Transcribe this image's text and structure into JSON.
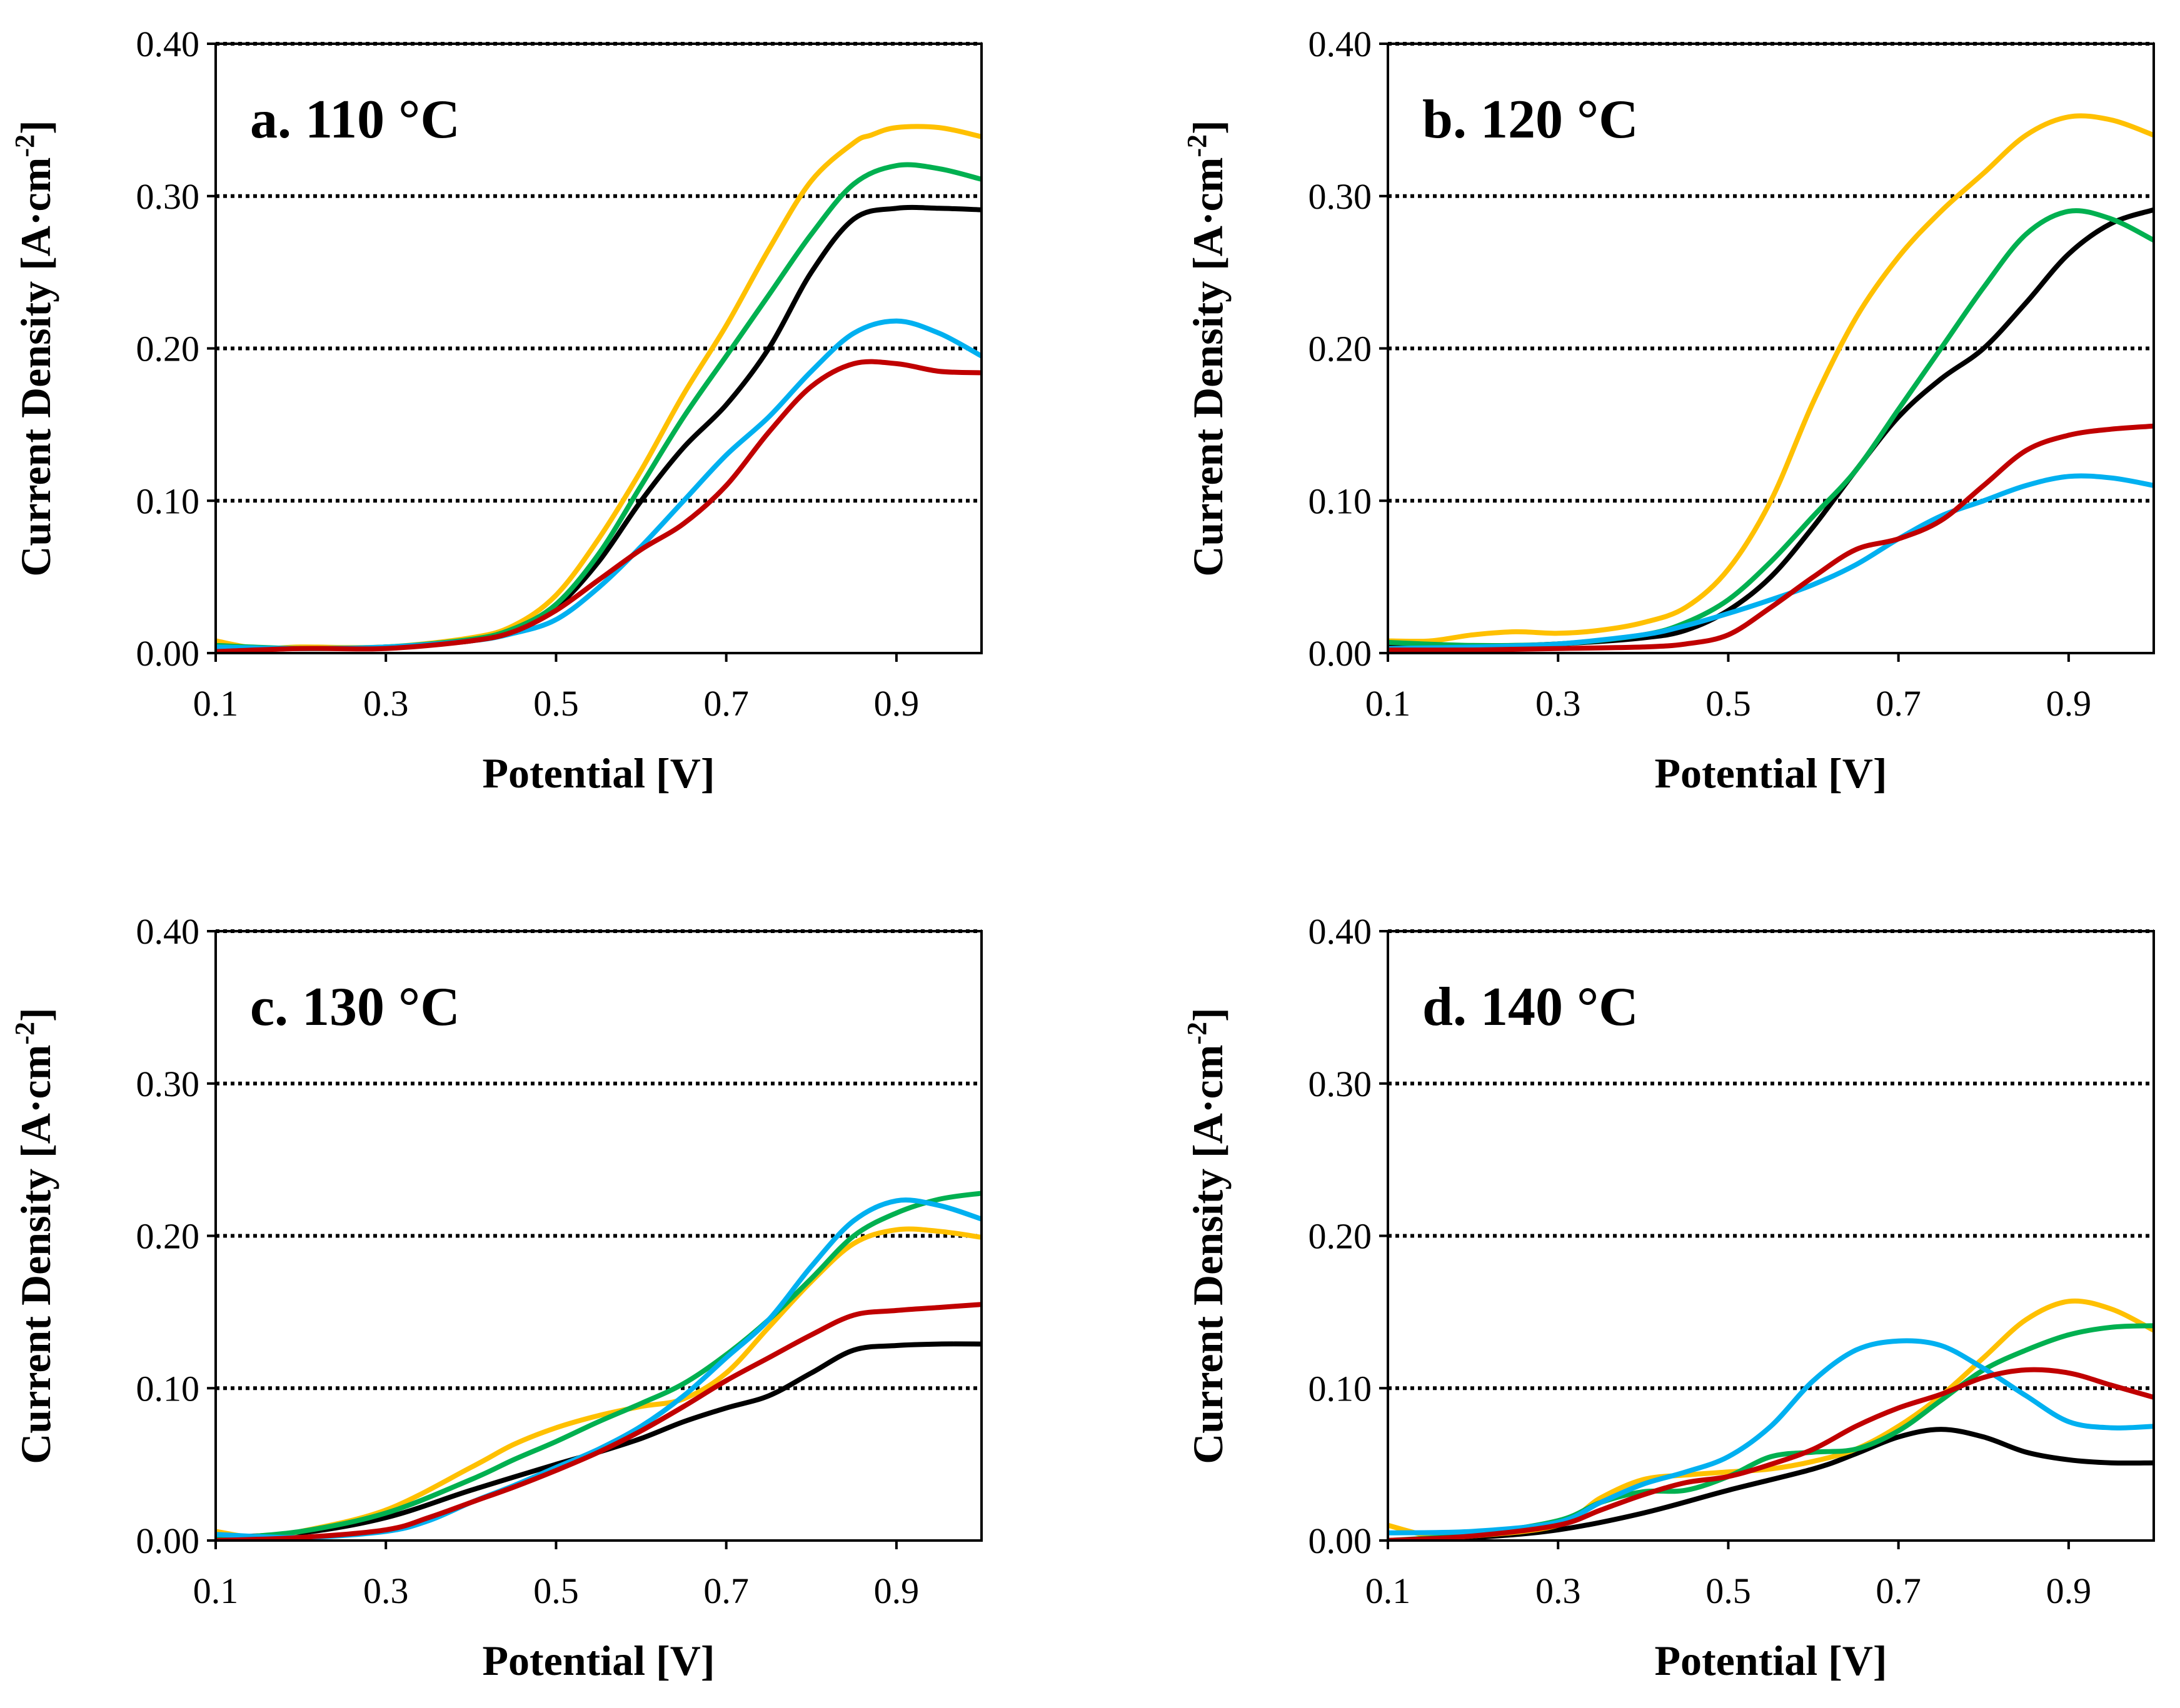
{
  "chart_data": [
    {
      "type": "line",
      "title": "a. 110 °C",
      "xlabel": "Potential [V]",
      "ylabel": "Current Density [A·cm",
      "ylabel_sup": "-2",
      "ylabel_end": "]",
      "xlim": [
        0.1,
        1.0
      ],
      "ylim": [
        0.0,
        0.4
      ],
      "xticks": [
        0.1,
        0.3,
        0.5,
        0.7,
        0.9
      ],
      "xtick_labels": [
        "0.1",
        "0.3",
        "0.5",
        "0.7",
        "0.9"
      ],
      "yticks": [
        0.0,
        0.1,
        0.2,
        0.3,
        0.4
      ],
      "ytick_labels": [
        "0.00",
        "0.10",
        "0.20",
        "0.30",
        "0.40"
      ],
      "gridlines": "horizontal dotted",
      "series": [
        {
          "name": "black",
          "color": "#000000",
          "x": [
            0.1,
            0.2,
            0.3,
            0.4,
            0.45,
            0.5,
            0.55,
            0.6,
            0.65,
            0.7,
            0.75,
            0.8,
            0.85,
            0.9,
            0.95,
            1.0
          ],
          "y": [
            0.003,
            0.003,
            0.004,
            0.008,
            0.015,
            0.03,
            0.06,
            0.1,
            0.135,
            0.163,
            0.2,
            0.25,
            0.285,
            0.292,
            0.292,
            0.291
          ]
        },
        {
          "name": "yellow",
          "color": "#FFC000",
          "x": [
            0.1,
            0.15,
            0.2,
            0.3,
            0.4,
            0.45,
            0.5,
            0.55,
            0.6,
            0.65,
            0.7,
            0.75,
            0.8,
            0.85,
            0.87,
            0.9,
            0.95,
            1.0
          ],
          "y": [
            0.008,
            0.003,
            0.004,
            0.004,
            0.01,
            0.018,
            0.038,
            0.075,
            0.12,
            0.17,
            0.215,
            0.265,
            0.31,
            0.335,
            0.34,
            0.345,
            0.345,
            0.339
          ]
        },
        {
          "name": "green",
          "color": "#00B050",
          "x": [
            0.1,
            0.2,
            0.3,
            0.4,
            0.45,
            0.5,
            0.55,
            0.6,
            0.65,
            0.7,
            0.75,
            0.8,
            0.85,
            0.9,
            0.95,
            1.0
          ],
          "y": [
            0.005,
            0.003,
            0.004,
            0.009,
            0.016,
            0.032,
            0.065,
            0.11,
            0.155,
            0.195,
            0.235,
            0.275,
            0.308,
            0.32,
            0.318,
            0.311
          ]
        },
        {
          "name": "blue",
          "color": "#00B0F0",
          "x": [
            0.1,
            0.2,
            0.3,
            0.4,
            0.45,
            0.5,
            0.55,
            0.6,
            0.65,
            0.7,
            0.75,
            0.8,
            0.85,
            0.9,
            0.95,
            1.0
          ],
          "y": [
            0.004,
            0.003,
            0.004,
            0.008,
            0.013,
            0.022,
            0.043,
            0.07,
            0.1,
            0.13,
            0.155,
            0.185,
            0.21,
            0.218,
            0.21,
            0.195
          ]
        },
        {
          "name": "red",
          "color": "#C00000",
          "x": [
            0.1,
            0.2,
            0.3,
            0.4,
            0.45,
            0.5,
            0.55,
            0.6,
            0.65,
            0.7,
            0.75,
            0.8,
            0.85,
            0.9,
            0.95,
            1.0
          ],
          "y": [
            0.001,
            0.003,
            0.003,
            0.008,
            0.014,
            0.028,
            0.048,
            0.068,
            0.085,
            0.11,
            0.145,
            0.175,
            0.19,
            0.19,
            0.185,
            0.184
          ]
        }
      ]
    },
    {
      "type": "line",
      "title": "b. 120 °C",
      "xlabel": "Potential [V]",
      "ylabel": "Current Density [A·cm",
      "ylabel_sup": "-2",
      "ylabel_end": "]",
      "xlim": [
        0.1,
        1.0
      ],
      "ylim": [
        0.0,
        0.4
      ],
      "xticks": [
        0.1,
        0.3,
        0.5,
        0.7,
        0.9
      ],
      "xtick_labels": [
        "0.1",
        "0.3",
        "0.5",
        "0.7",
        "0.9"
      ],
      "yticks": [
        0.0,
        0.1,
        0.2,
        0.3,
        0.4
      ],
      "ytick_labels": [
        "0.00",
        "0.10",
        "0.20",
        "0.30",
        "0.40"
      ],
      "gridlines": "horizontal dotted",
      "series": [
        {
          "name": "black",
          "color": "#000000",
          "x": [
            0.1,
            0.2,
            0.3,
            0.4,
            0.45,
            0.5,
            0.55,
            0.6,
            0.65,
            0.7,
            0.75,
            0.8,
            0.85,
            0.9,
            0.95,
            1.0
          ],
          "y": [
            0.004,
            0.004,
            0.006,
            0.01,
            0.015,
            0.028,
            0.05,
            0.083,
            0.12,
            0.155,
            0.18,
            0.2,
            0.23,
            0.262,
            0.282,
            0.291
          ]
        },
        {
          "name": "yellow",
          "color": "#FFC000",
          "x": [
            0.1,
            0.15,
            0.2,
            0.25,
            0.3,
            0.35,
            0.4,
            0.45,
            0.5,
            0.55,
            0.6,
            0.65,
            0.7,
            0.75,
            0.8,
            0.85,
            0.9,
            0.95,
            1.0
          ],
          "y": [
            0.008,
            0.008,
            0.012,
            0.014,
            0.013,
            0.015,
            0.02,
            0.03,
            0.055,
            0.1,
            0.165,
            0.22,
            0.26,
            0.29,
            0.315,
            0.34,
            0.352,
            0.35,
            0.34
          ]
        },
        {
          "name": "green",
          "color": "#00B050",
          "x": [
            0.1,
            0.2,
            0.3,
            0.4,
            0.45,
            0.5,
            0.55,
            0.6,
            0.65,
            0.7,
            0.75,
            0.8,
            0.85,
            0.9,
            0.95,
            1.0
          ],
          "y": [
            0.007,
            0.005,
            0.006,
            0.012,
            0.02,
            0.035,
            0.06,
            0.09,
            0.12,
            0.16,
            0.2,
            0.24,
            0.275,
            0.29,
            0.285,
            0.271
          ]
        },
        {
          "name": "blue",
          "color": "#00B0F0",
          "x": [
            0.1,
            0.2,
            0.3,
            0.4,
            0.45,
            0.5,
            0.55,
            0.6,
            0.65,
            0.7,
            0.75,
            0.8,
            0.85,
            0.9,
            0.95,
            1.0
          ],
          "y": [
            0.003,
            0.004,
            0.006,
            0.012,
            0.018,
            0.026,
            0.035,
            0.045,
            0.058,
            0.075,
            0.09,
            0.1,
            0.11,
            0.116,
            0.115,
            0.11
          ]
        },
        {
          "name": "red",
          "color": "#C00000",
          "x": [
            0.1,
            0.2,
            0.3,
            0.4,
            0.45,
            0.5,
            0.55,
            0.6,
            0.65,
            0.7,
            0.75,
            0.8,
            0.85,
            0.9,
            0.95,
            1.0
          ],
          "y": [
            0.002,
            0.002,
            0.003,
            0.004,
            0.006,
            0.012,
            0.03,
            0.05,
            0.068,
            0.075,
            0.087,
            0.11,
            0.133,
            0.143,
            0.147,
            0.149
          ]
        }
      ]
    },
    {
      "type": "line",
      "title": "c. 130 °C",
      "xlabel": "Potential [V]",
      "ylabel": "Current Density [A·cm",
      "ylabel_sup": "-2",
      "ylabel_end": "]",
      "xlim": [
        0.1,
        1.0
      ],
      "ylim": [
        0.0,
        0.4
      ],
      "xticks": [
        0.1,
        0.3,
        0.5,
        0.7,
        0.9
      ],
      "xtick_labels": [
        "0.1",
        "0.3",
        "0.5",
        "0.7",
        "0.9"
      ],
      "yticks": [
        0.0,
        0.1,
        0.2,
        0.3,
        0.4
      ],
      "ytick_labels": [
        "0.00",
        "0.10",
        "0.20",
        "0.30",
        "0.40"
      ],
      "gridlines": "horizontal dotted",
      "series": [
        {
          "name": "black",
          "color": "#000000",
          "x": [
            0.1,
            0.2,
            0.3,
            0.4,
            0.5,
            0.55,
            0.6,
            0.65,
            0.7,
            0.75,
            0.8,
            0.85,
            0.9,
            0.95,
            1.0
          ],
          "y": [
            0.002,
            0.005,
            0.015,
            0.033,
            0.05,
            0.058,
            0.067,
            0.078,
            0.087,
            0.095,
            0.11,
            0.125,
            0.128,
            0.129,
            0.129
          ]
        },
        {
          "name": "yellow",
          "color": "#FFC000",
          "x": [
            0.1,
            0.15,
            0.2,
            0.3,
            0.4,
            0.45,
            0.5,
            0.55,
            0.6,
            0.65,
            0.7,
            0.75,
            0.8,
            0.85,
            0.9,
            0.95,
            1.0
          ],
          "y": [
            0.006,
            0.002,
            0.006,
            0.02,
            0.048,
            0.063,
            0.074,
            0.082,
            0.088,
            0.093,
            0.11,
            0.14,
            0.17,
            0.195,
            0.204,
            0.203,
            0.199
          ]
        },
        {
          "name": "green",
          "color": "#00B050",
          "x": [
            0.1,
            0.2,
            0.3,
            0.4,
            0.45,
            0.5,
            0.55,
            0.6,
            0.65,
            0.7,
            0.75,
            0.8,
            0.85,
            0.9,
            0.95,
            1.0
          ],
          "y": [
            0.001,
            0.006,
            0.018,
            0.04,
            0.053,
            0.065,
            0.078,
            0.09,
            0.103,
            0.122,
            0.145,
            0.172,
            0.2,
            0.215,
            0.224,
            0.228
          ]
        },
        {
          "name": "blue",
          "color": "#00B0F0",
          "x": [
            0.1,
            0.2,
            0.3,
            0.35,
            0.4,
            0.45,
            0.5,
            0.55,
            0.6,
            0.65,
            0.7,
            0.75,
            0.8,
            0.85,
            0.9,
            0.95,
            1.0
          ],
          "y": [
            0.004,
            0.002,
            0.006,
            0.013,
            0.025,
            0.036,
            0.048,
            0.06,
            0.075,
            0.095,
            0.12,
            0.145,
            0.18,
            0.21,
            0.223,
            0.22,
            0.211
          ]
        },
        {
          "name": "red",
          "color": "#C00000",
          "x": [
            0.1,
            0.2,
            0.3,
            0.35,
            0.4,
            0.45,
            0.5,
            0.55,
            0.6,
            0.65,
            0.7,
            0.75,
            0.8,
            0.85,
            0.9,
            0.95,
            1.0
          ],
          "y": [
            0.0,
            0.002,
            0.007,
            0.015,
            0.025,
            0.035,
            0.046,
            0.058,
            0.072,
            0.088,
            0.105,
            0.12,
            0.135,
            0.148,
            0.151,
            0.153,
            0.155
          ]
        }
      ]
    },
    {
      "type": "line",
      "title": "d. 140 °C",
      "xlabel": "Potential [V]",
      "ylabel": "Current Density [A·cm",
      "ylabel_sup": "-2",
      "ylabel_end": "]",
      "xlim": [
        0.1,
        1.0
      ],
      "ylim": [
        0.0,
        0.4
      ],
      "xticks": [
        0.1,
        0.3,
        0.5,
        0.7,
        0.9
      ],
      "xtick_labels": [
        "0.1",
        "0.3",
        "0.5",
        "0.7",
        "0.9"
      ],
      "yticks": [
        0.0,
        0.1,
        0.2,
        0.3,
        0.4
      ],
      "ytick_labels": [
        "0.00",
        "0.10",
        "0.20",
        "0.30",
        "0.40"
      ],
      "gridlines": "horizontal dotted",
      "series": [
        {
          "name": "black",
          "color": "#000000",
          "x": [
            0.1,
            0.2,
            0.3,
            0.4,
            0.5,
            0.6,
            0.65,
            0.7,
            0.75,
            0.8,
            0.85,
            0.9,
            0.95,
            1.0
          ],
          "y": [
            0.0,
            0.002,
            0.007,
            0.018,
            0.033,
            0.047,
            0.057,
            0.068,
            0.073,
            0.068,
            0.058,
            0.053,
            0.051,
            0.051
          ]
        },
        {
          "name": "yellow",
          "color": "#FFC000",
          "x": [
            0.1,
            0.15,
            0.2,
            0.3,
            0.35,
            0.4,
            0.45,
            0.5,
            0.55,
            0.6,
            0.65,
            0.7,
            0.75,
            0.8,
            0.85,
            0.9,
            0.95,
            1.0
          ],
          "y": [
            0.01,
            0.003,
            0.003,
            0.01,
            0.028,
            0.04,
            0.043,
            0.045,
            0.047,
            0.052,
            0.06,
            0.075,
            0.095,
            0.12,
            0.145,
            0.157,
            0.152,
            0.138
          ]
        },
        {
          "name": "green",
          "color": "#00B050",
          "x": [
            0.1,
            0.2,
            0.3,
            0.35,
            0.4,
            0.45,
            0.5,
            0.55,
            0.6,
            0.65,
            0.7,
            0.75,
            0.8,
            0.85,
            0.9,
            0.95,
            1.0
          ],
          "y": [
            0.0,
            0.004,
            0.013,
            0.025,
            0.032,
            0.033,
            0.042,
            0.055,
            0.058,
            0.06,
            0.072,
            0.092,
            0.112,
            0.125,
            0.135,
            0.14,
            0.141
          ]
        },
        {
          "name": "blue",
          "color": "#00B0F0",
          "x": [
            0.1,
            0.2,
            0.3,
            0.35,
            0.4,
            0.45,
            0.5,
            0.55,
            0.6,
            0.65,
            0.7,
            0.75,
            0.8,
            0.85,
            0.9,
            0.95,
            1.0
          ],
          "y": [
            0.005,
            0.006,
            0.012,
            0.025,
            0.037,
            0.045,
            0.055,
            0.075,
            0.105,
            0.125,
            0.131,
            0.128,
            0.113,
            0.095,
            0.078,
            0.074,
            0.075
          ]
        },
        {
          "name": "red",
          "color": "#C00000",
          "x": [
            0.1,
            0.2,
            0.3,
            0.35,
            0.4,
            0.45,
            0.5,
            0.55,
            0.6,
            0.65,
            0.7,
            0.75,
            0.8,
            0.85,
            0.9,
            0.95,
            1.0
          ],
          "y": [
            0.0,
            0.003,
            0.01,
            0.02,
            0.03,
            0.038,
            0.042,
            0.05,
            0.06,
            0.075,
            0.087,
            0.096,
            0.107,
            0.112,
            0.11,
            0.102,
            0.094
          ]
        }
      ]
    }
  ]
}
